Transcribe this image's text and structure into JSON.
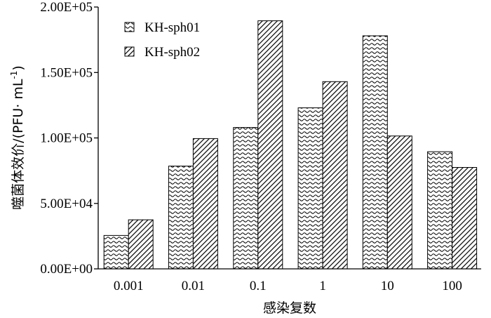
{
  "chart_data": {
    "type": "bar",
    "categories": [
      "0.001",
      "0.01",
      "0.1",
      "1",
      "10",
      "100"
    ],
    "series": [
      {
        "name": "KH-sph01",
        "values": [
          25500,
          78500,
          108000,
          123000,
          178000,
          89500
        ],
        "pattern": "wavy",
        "color": "#000000"
      },
      {
        "name": "KH-sph02",
        "values": [
          37500,
          99500,
          189500,
          143000,
          101500,
          77500
        ],
        "pattern": "diagonal",
        "color": "#000000"
      }
    ],
    "xlabel": "感染复数",
    "ylabel": "噬菌体效价/(PFU· mL",
    "ylabel_superscript": "-1",
    "ylabel_suffix": ")",
    "yticks": [
      "0.00E+00",
      "5.00E+04",
      "1.00E+05",
      "1.50E+05",
      "2.00E+05"
    ],
    "ytick_values": [
      0,
      50000,
      100000,
      150000,
      200000
    ],
    "ylim": [
      0,
      200000
    ],
    "legend_position": "top-left"
  }
}
